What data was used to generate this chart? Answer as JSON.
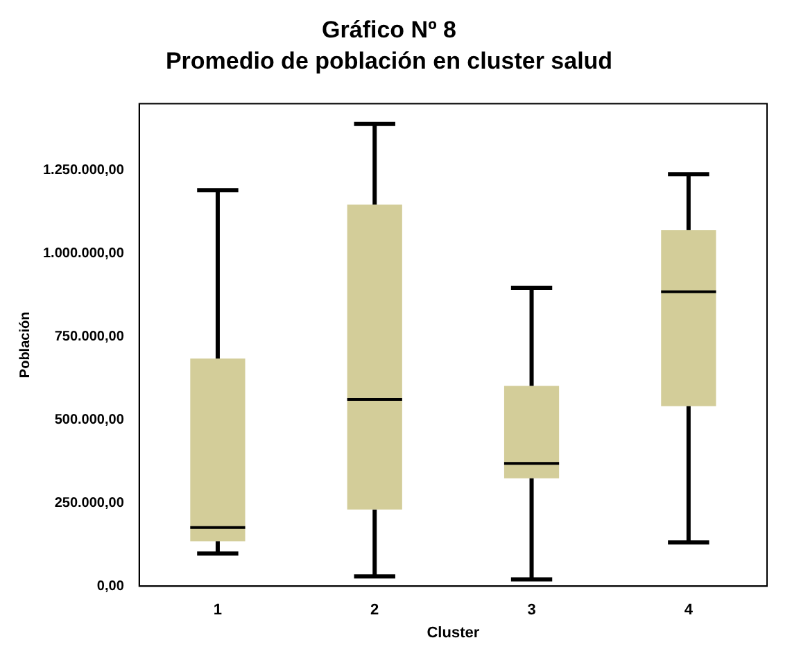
{
  "chart_data": {
    "type": "box",
    "title": "Gráfico Nº 8",
    "subtitle": "Promedio de población en cluster salud",
    "xlabel": "Cluster",
    "ylabel": "Población",
    "categories": [
      "1",
      "2",
      "3",
      "4"
    ],
    "color": "#d3cd99",
    "boxes": [
      {
        "low": 98000,
        "q1": 135000,
        "median": 176000,
        "q3": 684000,
        "high": 1190000
      },
      {
        "low": 29000,
        "q1": 230000,
        "median": 561000,
        "q3": 1147000,
        "high": 1389000
      },
      {
        "low": 20000,
        "q1": 324000,
        "median": 369000,
        "q3": 602000,
        "high": 897000
      },
      {
        "low": 131000,
        "q1": 541000,
        "median": 885000,
        "q3": 1070000,
        "high": 1238000
      }
    ],
    "ylim": [
      0,
      1450000
    ],
    "yticks": [
      {
        "value": 0,
        "label": "0,00"
      },
      {
        "value": 250000,
        "label": "250.000,00"
      },
      {
        "value": 500000,
        "label": "500.000,00"
      },
      {
        "value": 750000,
        "label": "750.000,00"
      },
      {
        "value": 1000000,
        "label": "1.000.000,00"
      },
      {
        "value": 1250000,
        "label": "1.250.000,00"
      }
    ],
    "grid": false,
    "legend": false
  }
}
